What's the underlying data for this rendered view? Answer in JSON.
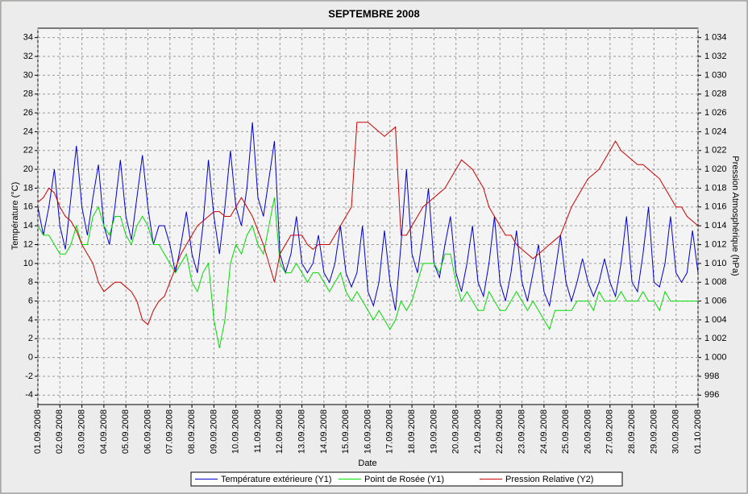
{
  "chart_data": {
    "type": "line",
    "title": "SEPTEMBRE  2008",
    "x_label": "Date",
    "y_label": "Température (°C)",
    "y2_label": "Pression Atmosphérique (hPa)",
    "grid": true,
    "legend": "bottom",
    "ylim": [
      -5,
      35
    ],
    "yticks": [
      -4,
      -2,
      0,
      2,
      4,
      6,
      8,
      10,
      12,
      14,
      16,
      18,
      20,
      22,
      24,
      26,
      28,
      30,
      32,
      34
    ],
    "y2lim": [
      995,
      1035
    ],
    "y2ticks": [
      996,
      998,
      {
        "value": 1000,
        "label": "1 000"
      },
      {
        "value": 1002,
        "label": "1 002"
      },
      {
        "value": 1004,
        "label": "1 004"
      },
      {
        "value": 1006,
        "label": "1 006"
      },
      {
        "value": 1008,
        "label": "1 008"
      },
      {
        "value": 1010,
        "label": "1 010"
      },
      {
        "value": 1012,
        "label": "1 012"
      },
      {
        "value": 1014,
        "label": "1 014"
      },
      {
        "value": 1016,
        "label": "1 016"
      },
      {
        "value": 1018,
        "label": "1 018"
      },
      {
        "value": 1020,
        "label": "1 020"
      },
      {
        "value": 1022,
        "label": "1 022"
      },
      {
        "value": 1024,
        "label": "1 024"
      },
      {
        "value": 1026,
        "label": "1 026"
      },
      {
        "value": 1028,
        "label": "1 028"
      },
      {
        "value": 1030,
        "label": "1 030"
      },
      {
        "value": 1032,
        "label": "1 032"
      },
      {
        "value": 1034,
        "label": "1 034"
      }
    ],
    "categories": [
      "01.09.2008",
      null,
      null,
      null,
      "02.09.2008",
      null,
      null,
      null,
      "03.09.2008",
      null,
      null,
      null,
      "04.09.2008",
      null,
      null,
      null,
      "05.09.2008",
      null,
      null,
      null,
      "06.09.2008",
      null,
      null,
      null,
      "07.09.2008",
      null,
      null,
      null,
      "08.09.2008",
      null,
      null,
      null,
      "09.09.2008",
      null,
      null,
      null,
      "10.09.2008",
      null,
      null,
      null,
      "11.09.2008",
      null,
      null,
      null,
      "12.09.2008",
      null,
      null,
      null,
      "13.09.2008",
      null,
      null,
      null,
      "14.09.2008",
      null,
      null,
      null,
      "15.09.2008",
      null,
      null,
      null,
      "16.09.2008",
      null,
      null,
      null,
      "17.09.2008",
      null,
      null,
      null,
      "18.09.2008",
      null,
      null,
      null,
      "19.09.2008",
      null,
      null,
      null,
      "20.09.2008",
      null,
      null,
      null,
      "21.09.2008",
      null,
      null,
      null,
      "22.09.2008",
      null,
      null,
      null,
      "23.09.2008",
      null,
      null,
      null,
      "24.09.2008",
      null,
      null,
      null,
      "25.09.2008",
      null,
      null,
      null,
      "26.09.2008",
      null,
      null,
      null,
      "27.09.2008",
      null,
      null,
      null,
      "28.09.2008",
      null,
      null,
      null,
      "29.09.2008",
      null,
      null,
      null,
      "30.09.2008",
      null,
      null,
      null,
      "01.10.2008"
    ],
    "series": [
      {
        "name": "Température extérieure (Y1)",
        "color": "#0000cc",
        "values": [
          16,
          13,
          16,
          20,
          14,
          11.5,
          17,
          22.5,
          16,
          13,
          17,
          20.5,
          14,
          12,
          16,
          21,
          15,
          12.5,
          17,
          21.5,
          16,
          12,
          14,
          14,
          12,
          9,
          12,
          15.5,
          11,
          9,
          14,
          21,
          15,
          11,
          16,
          22,
          16,
          14,
          18,
          25,
          17,
          15,
          19,
          23,
          11,
          9,
          11,
          15,
          10,
          9,
          10,
          13,
          9,
          8,
          10,
          14,
          9,
          7.5,
          9,
          14,
          7,
          5.5,
          8,
          13.5,
          8,
          5,
          12,
          20,
          11,
          9,
          13,
          18,
          10,
          8.5,
          12,
          15,
          9,
          7,
          10,
          14,
          8,
          6.5,
          10,
          15,
          8,
          6,
          9,
          13.5,
          8,
          6,
          9,
          12,
          7,
          5.5,
          9,
          13,
          8,
          6,
          8,
          10.5,
          8,
          6.5,
          8,
          10.5,
          8,
          6.5,
          10,
          15,
          8,
          7,
          11,
          16,
          8,
          7.5,
          10,
          15,
          9,
          8,
          9,
          13.5,
          9
        ]
      },
      {
        "name": "Point de Rosée (Y1)",
        "color": "#00dd00",
        "values": [
          14,
          13,
          13,
          12,
          11,
          11,
          12,
          14,
          12,
          12,
          15,
          16,
          14,
          13,
          15,
          15,
          13,
          12,
          14,
          15,
          14,
          12,
          12,
          11,
          10,
          9,
          10,
          11,
          8,
          7,
          9,
          10,
          4,
          1,
          4,
          10,
          12,
          11,
          13,
          14,
          12,
          11,
          14,
          17,
          10,
          9,
          9,
          10,
          9,
          8,
          9,
          9,
          8,
          7,
          8,
          9,
          7,
          6,
          7,
          6,
          5,
          4,
          5,
          4,
          3,
          4,
          6,
          5,
          6,
          8,
          10,
          10,
          10,
          9,
          11,
          11,
          8,
          6,
          7,
          6,
          5,
          5,
          7,
          6,
          5,
          5,
          6,
          7,
          6,
          5,
          6,
          5,
          4,
          3,
          5,
          5,
          5,
          5,
          6,
          6,
          6,
          5,
          7,
          6,
          6,
          6,
          7,
          6,
          6,
          6,
          7,
          6,
          6,
          5,
          7,
          6,
          6,
          6,
          6,
          6,
          6
        ]
      },
      {
        "name": "Pression Relative (Y2)",
        "color": "#cc0000",
        "axis": "y2",
        "values": [
          1016.5,
          1017,
          1018,
          1017.5,
          1016,
          1015,
          1014.5,
          1013.5,
          1012,
          1011,
          1010,
          1008,
          1007,
          1007.5,
          1008,
          1008,
          1007.5,
          1007,
          1006,
          1004,
          1003.5,
          1005,
          1006,
          1006.5,
          1008,
          1009.5,
          1011,
          1012,
          1013,
          1014,
          1014.5,
          1015,
          1015.5,
          1015.5,
          1015,
          1015,
          1016,
          1017,
          1016,
          1015,
          1013.5,
          1012,
          1010,
          1008,
          1011,
          1012,
          1013,
          1013,
          1013,
          1012,
          1011.5,
          1012,
          1012,
          1012,
          1013,
          1014,
          1015,
          1016,
          1025,
          1025,
          1025,
          1024.5,
          1024,
          1023.5,
          1024,
          1024.5,
          1013,
          1013,
          1014,
          1015,
          1016,
          1016.5,
          1017,
          1017.5,
          1018,
          1019,
          1020,
          1021,
          1020.5,
          1020,
          1019,
          1018,
          1016,
          1015,
          1014,
          1013,
          1013,
          1012,
          1011.5,
          1011,
          1010.5,
          1011,
          1011.5,
          1012,
          1012.5,
          1013,
          1014.5,
          1016,
          1017,
          1018,
          1019,
          1019.5,
          1020,
          1021,
          1022,
          1023,
          1022,
          1021.5,
          1021,
          1020.5,
          1020.5,
          1020,
          1019.5,
          1019,
          1018,
          1017,
          1016,
          1016,
          1015,
          1014.5,
          1014
        ]
      }
    ]
  }
}
